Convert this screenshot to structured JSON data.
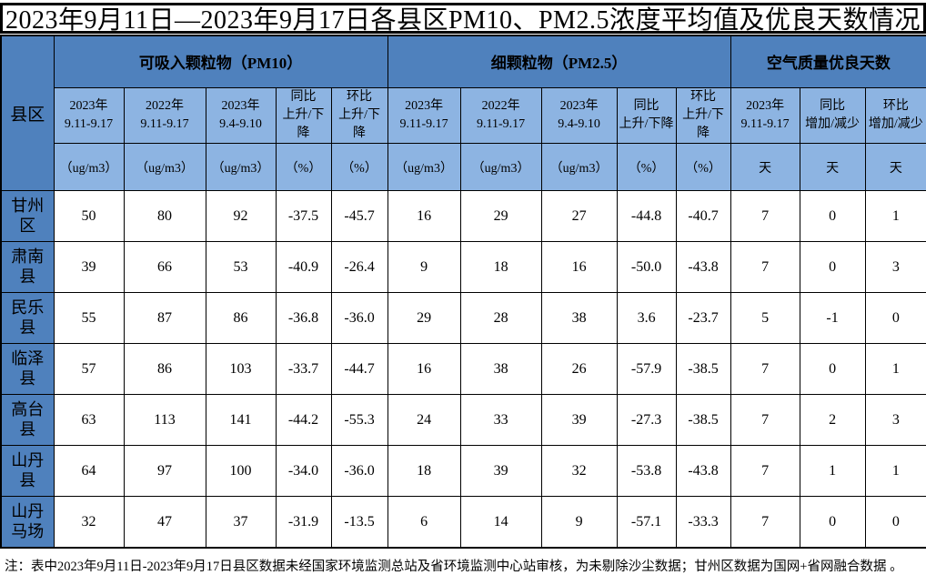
{
  "title": "2023年9月11日—2023年9月17日各县区PM10、PM2.5浓度平均值及优良天数情况",
  "table": {
    "corner_label": "县区",
    "groups": [
      {
        "label": "可吸入颗粒物（PM10）",
        "columns": [
          {
            "label": "2023年\n9.11-9.17",
            "unit": "（ug/m3）"
          },
          {
            "label": "2022年\n9.11-9.17",
            "unit": "（ug/m3）"
          },
          {
            "label": "2023年\n9.4-9.10",
            "unit": "（ug/m3）"
          },
          {
            "label": "同比\n上升/下降",
            "unit": "（%）"
          },
          {
            "label": "环比\n上升/下降",
            "unit": "（%）"
          }
        ]
      },
      {
        "label": "细颗粒物（PM2.5）",
        "columns": [
          {
            "label": "2023年\n9.11-9.17",
            "unit": "（ug/m3）"
          },
          {
            "label": "2022年\n9.11-9.17",
            "unit": "（ug/m3）"
          },
          {
            "label": "2023年\n9.4-9.10",
            "unit": "（ug/m3）"
          },
          {
            "label": "同比\n上升/下降",
            "unit": "（%）"
          },
          {
            "label": "环比\n上升/下降",
            "unit": "（%）"
          }
        ]
      },
      {
        "label": "空气质量优良天数",
        "columns": [
          {
            "label": "2023年\n9.11-9.17",
            "unit": "天"
          },
          {
            "label": "同比\n增加/减少",
            "unit": "天"
          },
          {
            "label": "环比\n增加/减少",
            "unit": "天"
          }
        ]
      }
    ],
    "rows": [
      {
        "county": "甘州区",
        "values": [
          "50",
          "80",
          "92",
          "-37.5",
          "-45.7",
          "16",
          "29",
          "27",
          "-44.8",
          "-40.7",
          "7",
          "0",
          "1"
        ]
      },
      {
        "county": "肃南县",
        "values": [
          "39",
          "66",
          "53",
          "-40.9",
          "-26.4",
          "9",
          "18",
          "16",
          "-50.0",
          "-43.8",
          "7",
          "0",
          "3"
        ]
      },
      {
        "county": "民乐县",
        "values": [
          "55",
          "87",
          "86",
          "-36.8",
          "-36.0",
          "29",
          "28",
          "38",
          "3.6",
          "-23.7",
          "5",
          "-1",
          "0"
        ]
      },
      {
        "county": "临泽县",
        "values": [
          "57",
          "86",
          "103",
          "-33.7",
          "-44.7",
          "16",
          "38",
          "26",
          "-57.9",
          "-38.5",
          "7",
          "0",
          "1"
        ]
      },
      {
        "county": "高台县",
        "values": [
          "63",
          "113",
          "141",
          "-44.2",
          "-55.3",
          "24",
          "33",
          "39",
          "-27.3",
          "-38.5",
          "7",
          "2",
          "3"
        ]
      },
      {
        "county": "山丹县",
        "values": [
          "64",
          "97",
          "100",
          "-34.0",
          "-36.0",
          "18",
          "39",
          "32",
          "-53.8",
          "-43.8",
          "7",
          "1",
          "1"
        ]
      },
      {
        "county": "山丹马场",
        "values": [
          "32",
          "47",
          "37",
          "-31.9",
          "-13.5",
          "6",
          "14",
          "9",
          "-57.1",
          "-33.3",
          "7",
          "0",
          "0"
        ]
      }
    ]
  },
  "footnote": "注：表中2023年9月11日-2023年9月17日县区数据未经国家环境监测总站及省环境监测中心站审核，为未剔除沙尘数据；甘州区数据为国网+省网融合数据 。",
  "colors": {
    "header_dark": "#4F81BD",
    "header_light": "#8DB4E2",
    "border": "#000000",
    "cell_background": "#FFFFFF",
    "text": "#000000"
  }
}
